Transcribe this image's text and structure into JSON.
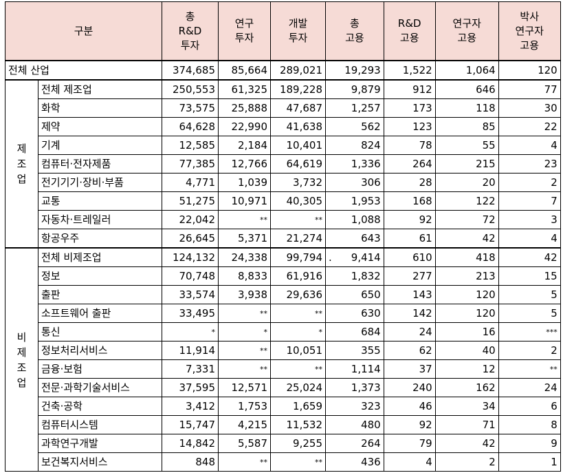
{
  "table": {
    "headers": [
      {
        "lines": [
          "구분"
        ]
      },
      {
        "lines": [
          "총",
          "R&D",
          "투자"
        ]
      },
      {
        "lines": [
          "연구",
          "투자"
        ]
      },
      {
        "lines": [
          "개발",
          "투자"
        ]
      },
      {
        "lines": [
          "총",
          "고용"
        ]
      },
      {
        "lines": [
          "R&D",
          "고용"
        ]
      },
      {
        "lines": [
          "연구자",
          "고용"
        ]
      },
      {
        "lines": [
          "박사",
          "연구자",
          "고용"
        ]
      }
    ],
    "total_row": {
      "label": "전체  산업",
      "cells": [
        "374,685",
        "85,664",
        "289,021",
        "19,293",
        "1,522",
        "1,064",
        "120"
      ]
    },
    "manufacturing": {
      "group_label": [
        "제",
        "조",
        "업"
      ],
      "rows": [
        {
          "label": "전체  제조업",
          "cells": [
            "250,553",
            "61,325",
            "189,228",
            "9,879",
            "912",
            "646",
            "77"
          ]
        },
        {
          "label": "화학",
          "cells": [
            "73,575",
            "25,888",
            "47,687",
            "1,257",
            "173",
            "118",
            "30"
          ]
        },
        {
          "label": "제약",
          "cells": [
            "64,628",
            "22,990",
            "41,638",
            "562",
            "123",
            "85",
            "22"
          ]
        },
        {
          "label": "기계",
          "cells": [
            "12,585",
            "2,184",
            "10,401",
            "824",
            "78",
            "55",
            "4"
          ]
        },
        {
          "label": "컴퓨터·전자제품",
          "cells": [
            "77,385",
            "12,766",
            "64,619",
            "1,336",
            "264",
            "215",
            "23"
          ]
        },
        {
          "label": "전기기기·장비·부품",
          "cells": [
            "4,771",
            "1,039",
            "3,732",
            "306",
            "28",
            "20",
            "2"
          ]
        },
        {
          "label": "교통",
          "cells": [
            "51,275",
            "10,971",
            "40,305",
            "1,953",
            "168",
            "122",
            "7"
          ]
        },
        {
          "label": "자동차·트레일러",
          "cells": [
            "22,042",
            "**",
            "**",
            "1,088",
            "92",
            "72",
            "3"
          ]
        },
        {
          "label": "항공우주",
          "cells": [
            "26,645",
            "5,371",
            "21,274",
            "643",
            "61",
            "42",
            "4"
          ]
        }
      ]
    },
    "non_manufacturing": {
      "group_label": [
        "비",
        "제",
        "조",
        "업"
      ],
      "rows": [
        {
          "label": "전체  비제조업",
          "cells": [
            "124,132",
            "24,338",
            "99,794",
            "9,414",
            "610",
            "418",
            "42"
          ],
          "mark": "."
        },
        {
          "label": "정보",
          "cells": [
            "70,748",
            "8,833",
            "61,916",
            "1,832",
            "277",
            "213",
            "15"
          ]
        },
        {
          "label": "출판",
          "cells": [
            "33,574",
            "3,938",
            "29,636",
            "650",
            "143",
            "120",
            "5"
          ]
        },
        {
          "label": "소프트웨어 출판",
          "cells": [
            "33,495",
            "**",
            "**",
            "630",
            "142",
            "120",
            "5"
          ]
        },
        {
          "label": "통신",
          "cells": [
            "*",
            "*",
            "*",
            "684",
            "24",
            "16",
            "***"
          ]
        },
        {
          "label": "정보처리서비스",
          "cells": [
            "11,914",
            "**",
            "10,051",
            "355",
            "62",
            "40",
            "2"
          ]
        },
        {
          "label": "금융·보험",
          "cells": [
            "7,331",
            "**",
            "**",
            "1,114",
            "37",
            "12",
            "**"
          ]
        },
        {
          "label": "전문·과학기술서비스",
          "cells": [
            "37,595",
            "12,571",
            "25,024",
            "1,373",
            "240",
            "162",
            "24"
          ]
        },
        {
          "label": "건축·공학",
          "cells": [
            "3,412",
            "1,753",
            "1,659",
            "323",
            "46",
            "34",
            "6"
          ]
        },
        {
          "label": "컴퓨터시스템",
          "cells": [
            "15,747",
            "4,215",
            "11,532",
            "480",
            "92",
            "71",
            "8"
          ]
        },
        {
          "label": "과학연구개발",
          "cells": [
            "14,842",
            "5,587",
            "9,255",
            "264",
            "79",
            "42",
            "9"
          ]
        },
        {
          "label": "보건복지서비스",
          "cells": [
            "848",
            "**",
            "**",
            "436",
            "4",
            "2",
            "1"
          ]
        }
      ]
    },
    "colors": {
      "header_bg": "#f6dbd6",
      "border": "#000000"
    }
  }
}
